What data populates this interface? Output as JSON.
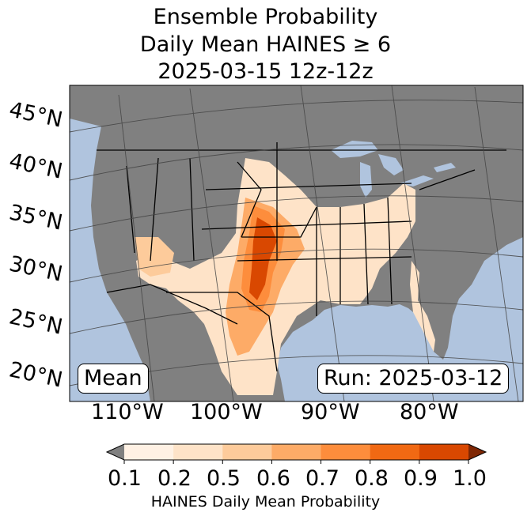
{
  "title": {
    "line1": "Ensemble Probability",
    "line2": "Daily Mean HAINES ≥ 6",
    "line3": "2025-03-15 12z-12z"
  },
  "lat_labels": [
    "45°N",
    "40°N",
    "35°N",
    "30°N",
    "25°N",
    "20°N"
  ],
  "lon_labels": [
    "110°W",
    "100°W",
    "90°W",
    "80°W"
  ],
  "stat_box": "Mean",
  "run_box": "Run: 2025-03-12",
  "colorbar": {
    "ticks": [
      "0.1",
      "0.2",
      "0.5",
      "0.6",
      "0.7",
      "0.8",
      "0.9",
      "1.0"
    ],
    "title": "HAINES Daily Mean Probability",
    "colors": [
      "#fff1e4",
      "#fee3c8",
      "#fdcb9b",
      "#fdab67",
      "#fd8d3c",
      "#f16913",
      "#d94801",
      "#7f2704"
    ],
    "under_color": "#808080"
  },
  "colors": {
    "ocean": "#b0c4de",
    "land_low": "#808080"
  }
}
